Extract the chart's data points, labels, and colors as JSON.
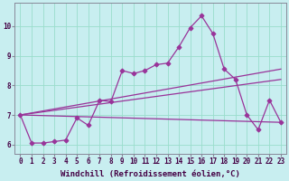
{
  "xlabel": "Windchill (Refroidissement éolien,°C)",
  "background_color": "#c8eef0",
  "grid_color": "#99ddcc",
  "line_color": "#993399",
  "xlim": [
    -0.5,
    23.5
  ],
  "ylim": [
    5.7,
    10.8
  ],
  "xticks": [
    0,
    1,
    2,
    3,
    4,
    5,
    6,
    7,
    8,
    9,
    10,
    11,
    12,
    13,
    14,
    15,
    16,
    17,
    18,
    19,
    20,
    21,
    22,
    23
  ],
  "yticks": [
    6,
    7,
    8,
    9,
    10
  ],
  "series": [
    {
      "x": [
        0,
        1,
        2,
        3,
        4,
        5,
        6,
        7,
        8,
        9,
        10,
        11,
        12,
        13,
        14,
        15,
        16,
        17,
        18,
        19,
        20,
        21,
        22,
        23
      ],
      "y": [
        7.0,
        6.05,
        6.05,
        6.1,
        6.15,
        6.9,
        6.65,
        7.5,
        7.45,
        8.5,
        8.4,
        8.5,
        8.7,
        8.75,
        9.3,
        9.95,
        10.35,
        9.75,
        8.55,
        8.2,
        7.0,
        6.5,
        7.5,
        6.75
      ],
      "marker": "D",
      "markersize": 2.5,
      "linewidth": 0.9
    },
    {
      "x": [
        0,
        23
      ],
      "y": [
        7.0,
        8.55
      ],
      "marker": null,
      "markersize": 0,
      "linewidth": 0.9
    },
    {
      "x": [
        0,
        23
      ],
      "y": [
        7.0,
        8.2
      ],
      "marker": null,
      "markersize": 0,
      "linewidth": 0.9
    },
    {
      "x": [
        0,
        23
      ],
      "y": [
        7.0,
        6.75
      ],
      "marker": null,
      "markersize": 0,
      "linewidth": 0.9
    }
  ],
  "xlabel_fontsize": 6.5,
  "tick_fontsize": 5.5,
  "figsize": [
    3.2,
    2.0
  ],
  "dpi": 100
}
